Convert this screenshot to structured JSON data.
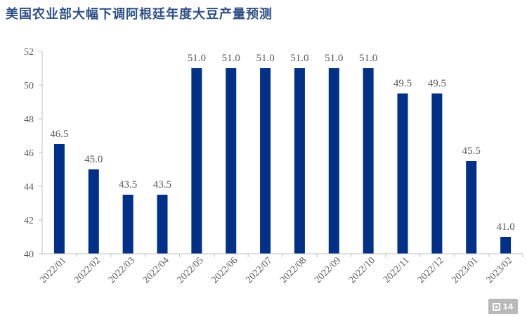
{
  "chart_data": {
    "type": "bar",
    "title": "美国农业部大幅下调阿根廷年度大豆产量预测",
    "categories": [
      "2022/01",
      "2022/02",
      "2022/03",
      "2022/04",
      "2022/05",
      "2022/06",
      "2022/07",
      "2022/08",
      "2022/09",
      "2022/10",
      "2022/11",
      "2022/12",
      "2023/01",
      "2023/02"
    ],
    "values": [
      46.5,
      45.0,
      43.5,
      43.5,
      51.0,
      51.0,
      51.0,
      51.0,
      51.0,
      51.0,
      49.5,
      49.5,
      45.5,
      41.0
    ],
    "value_labels": [
      "46.5",
      "45.0",
      "43.5",
      "43.5",
      "51.0",
      "51.0",
      "51.0",
      "51.0",
      "51.0",
      "51.0",
      "49.5",
      "49.5",
      "45.5",
      "41.0"
    ],
    "ylim": [
      40,
      52
    ],
    "yticks": [
      40,
      42,
      44,
      46,
      48,
      50,
      52
    ],
    "ytick_labels": [
      "40",
      "42",
      "44",
      "46",
      "48",
      "50",
      "52"
    ],
    "xlabel": "",
    "ylabel": "",
    "grid": false,
    "bar_color": "#003087"
  },
  "watermark": {
    "icon": "qr-icon",
    "text": "14"
  }
}
